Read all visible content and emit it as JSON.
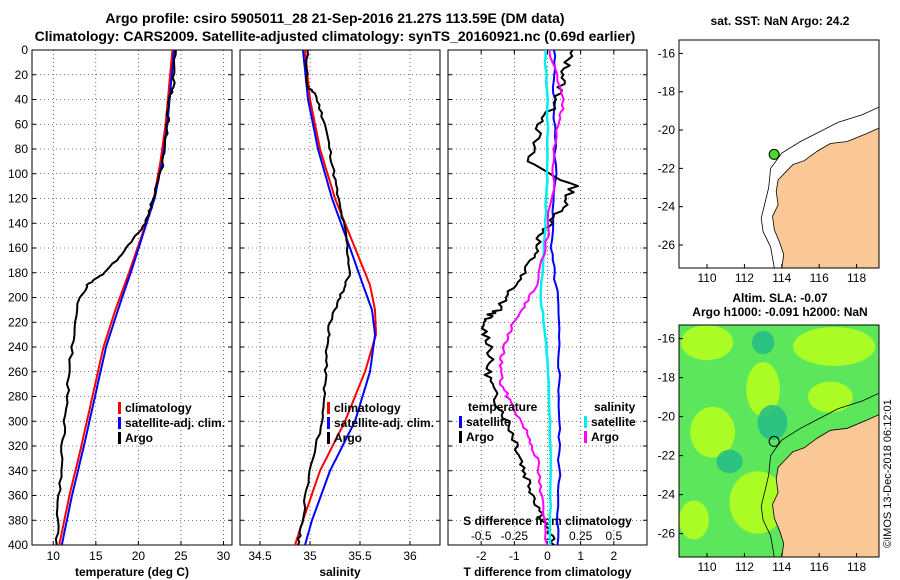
{
  "header": {
    "title_line1": "Argo profile: csiro 5905011_28 21-Sep-2016 21.27S 113.59E (DM data)",
    "title_line2": "Climatology: CARS2009. Satellite-adjusted climatology: synTS_20160921.nc (0.69d earlier)"
  },
  "maps": {
    "sst_title": "sat. SST: NaN Argo: 24.2",
    "sla_title1": "Altim. SLA: -0.07",
    "sla_title2": "Argo h1000: -0.091 h2000: NaN",
    "credit": "©IMOS 13-Dec-2018 06:12:01",
    "lon_ticks": [
      "110",
      "112",
      "114",
      "116",
      "118"
    ],
    "lat_ticks": [
      "-16",
      "-18",
      "-20",
      "-22",
      "-24",
      "-26"
    ],
    "float_lon": 113.59,
    "float_lat": -21.27,
    "colors": {
      "land": "#f9c896",
      "ocean_high": "#b8ff1a",
      "ocean_mid": "#5ce65c",
      "ocean_low": "#22bb88",
      "argo_marker": "#44dd22"
    }
  },
  "colors": {
    "climatology": "#ff0000",
    "satellite": "#0000ff",
    "argo": "#000000",
    "sat_salinity": "#00eeee",
    "argo_salinity": "#ff00ff"
  },
  "chart_data": [
    {
      "type": "line",
      "id": "temperature",
      "xlabel": "temperature (deg C)",
      "ylabel": "",
      "xlim": [
        7.5,
        31
      ],
      "ylim": [
        0,
        400
      ],
      "x_ticks": [
        "10",
        "15",
        "20",
        "25",
        "30"
      ],
      "y_ticks": [
        "0",
        "20",
        "40",
        "60",
        "80",
        "100",
        "120",
        "140",
        "160",
        "180",
        "200",
        "220",
        "240",
        "260",
        "280",
        "300",
        "320",
        "340",
        "360",
        "380",
        "400"
      ],
      "legend": [
        "climatology",
        "satellite-adj. clim.",
        "Argo"
      ],
      "series": [
        {
          "name": "climatology",
          "depth": [
            0,
            30,
            60,
            90,
            120,
            150,
            180,
            210,
            240,
            280,
            320,
            360,
            400
          ],
          "values": [
            24.0,
            23.6,
            23.2,
            22.6,
            21.8,
            20.4,
            18.9,
            17.3,
            15.9,
            14.6,
            13.3,
            11.9,
            10.7
          ]
        },
        {
          "name": "satellite-adj. clim.",
          "depth": [
            0,
            30,
            60,
            90,
            120,
            150,
            180,
            210,
            240,
            280,
            320,
            360,
            400
          ],
          "values": [
            24.2,
            23.8,
            23.4,
            22.8,
            21.9,
            20.5,
            19.1,
            17.6,
            16.2,
            14.9,
            13.6,
            12.2,
            11.0
          ]
        },
        {
          "name": "Argo",
          "depth": [
            0,
            30,
            40,
            60,
            90,
            120,
            140,
            160,
            180,
            190,
            200,
            240,
            280,
            320,
            360,
            400
          ],
          "values": [
            24.4,
            24.1,
            23.6,
            23.4,
            22.9,
            21.8,
            20.8,
            18.7,
            16.0,
            14.0,
            13.1,
            12.2,
            11.6,
            11.1,
            10.7,
            10.4
          ]
        }
      ]
    },
    {
      "type": "line",
      "id": "salinity",
      "xlabel": "salinity",
      "ylabel": "",
      "xlim": [
        34.3,
        36.3
      ],
      "ylim": [
        0,
        400
      ],
      "x_ticks": [
        "34.5",
        "35",
        "35.5",
        "36"
      ],
      "legend": [
        "climatology",
        "satellite-adj. clim.",
        "Argo"
      ],
      "series": [
        {
          "name": "climatology",
          "depth": [
            0,
            40,
            80,
            120,
            160,
            190,
            210,
            230,
            260,
            300,
            340,
            380,
            400
          ],
          "values": [
            34.95,
            35.0,
            35.1,
            35.25,
            35.45,
            35.6,
            35.65,
            35.66,
            35.55,
            35.35,
            35.1,
            34.93,
            34.85
          ]
        },
        {
          "name": "satellite-adj. clim.",
          "depth": [
            0,
            40,
            80,
            120,
            160,
            190,
            210,
            230,
            260,
            300,
            340,
            380,
            400
          ],
          "values": [
            34.93,
            34.98,
            35.08,
            35.22,
            35.4,
            35.53,
            35.62,
            35.65,
            35.6,
            35.45,
            35.2,
            35.02,
            34.95
          ]
        },
        {
          "name": "Argo",
          "depth": [
            0,
            30,
            35,
            60,
            90,
            120,
            150,
            180,
            200,
            220,
            240,
            270,
            300,
            340,
            380,
            400
          ],
          "values": [
            34.97,
            34.97,
            35.05,
            35.15,
            35.22,
            35.28,
            35.36,
            35.4,
            35.3,
            35.2,
            35.17,
            35.15,
            35.12,
            35.0,
            34.92,
            34.88
          ]
        }
      ]
    },
    {
      "type": "line",
      "id": "difference",
      "xlabel": "T difference from climatology",
      "ylabel": "",
      "xlim": [
        -3,
        3
      ],
      "ylim": [
        0,
        400
      ],
      "x_ticks": [
        "-2",
        "-1",
        "0",
        "1",
        "2"
      ],
      "s_xlim": [
        -0.75,
        0.75
      ],
      "s_ticks": [
        "-0.5",
        "-0.25",
        "0",
        "0.25",
        "0.5"
      ],
      "s_label": "S difference from climatology",
      "legend_temperature": "temperature",
      "legend_salinity": "salinity",
      "legend_satellite": "satellite",
      "legend_argo": "Argo",
      "series": [
        {
          "name": "T satellite",
          "depth": [
            0,
            40,
            100,
            160,
            200,
            250,
            300,
            350,
            400
          ],
          "values": [
            0.2,
            0.2,
            0.25,
            0.1,
            0.3,
            0.35,
            0.35,
            0.35,
            0.3
          ]
        },
        {
          "name": "T Argo",
          "depth": [
            0,
            20,
            40,
            60,
            90,
            110,
            130,
            150,
            170,
            190,
            210,
            220,
            240,
            260,
            280,
            300,
            320,
            340,
            360,
            380,
            400
          ],
          "values": [
            0.7,
            0.5,
            0.3,
            -0.2,
            -0.6,
            0.8,
            0.4,
            -0.2,
            -0.5,
            -1.0,
            -1.5,
            -2.0,
            -1.7,
            -1.8,
            -1.6,
            -1.2,
            -0.9,
            -0.7,
            -0.4,
            -0.1,
            0.2
          ]
        },
        {
          "name": "S satellite",
          "depth": [
            0,
            40,
            100,
            150,
            200,
            250,
            300,
            350,
            400
          ],
          "values": [
            -0.02,
            0.0,
            0.0,
            -0.02,
            -0.05,
            0.0,
            0.02,
            0.02,
            0.02
          ]
        },
        {
          "name": "S Argo",
          "depth": [
            0,
            40,
            60,
            100,
            150,
            190,
            210,
            230,
            250,
            270,
            290,
            310,
            330,
            360,
            400
          ],
          "values": [
            0.0,
            0.13,
            0.07,
            0.05,
            0.0,
            -0.08,
            -0.2,
            -0.3,
            -0.35,
            -0.35,
            -0.25,
            -0.15,
            -0.08,
            -0.05,
            0.0
          ]
        }
      ]
    }
  ]
}
